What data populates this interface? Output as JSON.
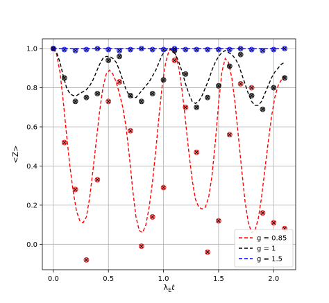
{
  "chart_data": {
    "type": "line",
    "xlabel": "λ_E t",
    "ylabel": "<Z>",
    "xlim": [
      -0.1,
      2.2
    ],
    "ylim": [
      -0.13,
      1.05
    ],
    "xticks": [
      "0.0",
      "0.5",
      "1.0",
      "1.5",
      "2.0"
    ],
    "xtick_values": [
      0.0,
      0.5,
      1.0,
      1.5,
      2.0
    ],
    "yticks": [
      "0.0",
      "0.2",
      "0.4",
      "0.6",
      "0.8",
      "1.0"
    ],
    "ytick_values": [
      0.0,
      0.2,
      0.4,
      0.6,
      0.8,
      1.0
    ],
    "grid": true,
    "legend_position": "lower-right",
    "series": [
      {
        "name": "g = 0.85",
        "color": "#ff0000",
        "line": {
          "x": [
            0.0,
            0.03,
            0.06,
            0.09,
            0.12,
            0.15,
            0.18,
            0.21,
            0.24,
            0.27,
            0.3,
            0.33,
            0.36,
            0.39,
            0.42,
            0.45,
            0.48,
            0.51,
            0.54,
            0.57,
            0.6,
            0.63,
            0.66,
            0.69,
            0.72,
            0.75,
            0.78,
            0.81,
            0.84,
            0.87,
            0.9,
            0.93,
            0.96,
            0.99,
            1.02,
            1.05,
            1.08,
            1.11,
            1.14,
            1.17,
            1.2,
            1.23,
            1.26,
            1.29,
            1.32,
            1.35,
            1.38,
            1.41,
            1.44,
            1.47,
            1.5,
            1.53,
            1.56,
            1.59,
            1.62,
            1.65,
            1.68,
            1.71,
            1.74,
            1.77,
            1.8,
            1.83,
            1.86,
            1.89,
            1.92,
            1.95,
            1.98,
            2.01,
            2.04,
            2.07,
            2.1
          ],
          "y": [
            1.0,
            0.97,
            0.88,
            0.73,
            0.56,
            0.4,
            0.27,
            0.17,
            0.12,
            0.11,
            0.14,
            0.24,
            0.38,
            0.53,
            0.68,
            0.8,
            0.87,
            0.89,
            0.87,
            0.83,
            0.77,
            0.7,
            0.6,
            0.45,
            0.28,
            0.14,
            0.07,
            0.06,
            0.1,
            0.19,
            0.32,
            0.48,
            0.66,
            0.82,
            0.93,
            0.99,
            1.0,
            0.97,
            0.9,
            0.78,
            0.63,
            0.47,
            0.33,
            0.23,
            0.19,
            0.18,
            0.19,
            0.24,
            0.35,
            0.52,
            0.72,
            0.88,
            0.95,
            0.93,
            0.85,
            0.72,
            0.55,
            0.38,
            0.22,
            0.11,
            0.06,
            0.07,
            0.13,
            0.24,
            0.38,
            0.52,
            0.65,
            0.75,
            0.81,
            0.84,
            0.86
          ]
        },
        "points": {
          "x": [
            0.0,
            0.1,
            0.2,
            0.3,
            0.4,
            0.5,
            0.6,
            0.7,
            0.8,
            0.9,
            1.0,
            1.1,
            1.2,
            1.3,
            1.4,
            1.5,
            1.6,
            1.7,
            1.8,
            1.9,
            2.0,
            2.1
          ],
          "y": [
            1.0,
            0.52,
            0.28,
            -0.08,
            0.33,
            0.73,
            0.83,
            0.58,
            -0.01,
            0.14,
            0.29,
            0.94,
            0.7,
            0.47,
            -0.04,
            0.12,
            0.56,
            0.82,
            0.8,
            0.16,
            0.11,
            0.08
          ]
        }
      },
      {
        "name": "g = 1",
        "color": "#000000",
        "line": {
          "x": [
            0.0,
            0.03,
            0.06,
            0.09,
            0.12,
            0.15,
            0.18,
            0.21,
            0.24,
            0.27,
            0.3,
            0.33,
            0.36,
            0.39,
            0.42,
            0.45,
            0.48,
            0.51,
            0.54,
            0.57,
            0.6,
            0.63,
            0.66,
            0.69,
            0.72,
            0.75,
            0.78,
            0.81,
            0.84,
            0.87,
            0.9,
            0.93,
            0.96,
            0.99,
            1.02,
            1.05,
            1.08,
            1.11,
            1.14,
            1.17,
            1.2,
            1.23,
            1.26,
            1.29,
            1.32,
            1.35,
            1.38,
            1.41,
            1.44,
            1.47,
            1.5,
            1.53,
            1.56,
            1.59,
            1.62,
            1.65,
            1.68,
            1.71,
            1.74,
            1.77,
            1.8,
            1.83,
            1.86,
            1.89,
            1.92,
            1.95,
            1.98,
            2.01,
            2.04,
            2.07,
            2.1
          ],
          "y": [
            1.0,
            0.98,
            0.93,
            0.86,
            0.8,
            0.77,
            0.76,
            0.76,
            0.77,
            0.78,
            0.79,
            0.81,
            0.84,
            0.88,
            0.92,
            0.95,
            0.96,
            0.96,
            0.95,
            0.93,
            0.89,
            0.84,
            0.79,
            0.76,
            0.75,
            0.75,
            0.77,
            0.79,
            0.81,
            0.83,
            0.86,
            0.89,
            0.93,
            0.97,
            0.99,
            1.0,
            0.99,
            0.97,
            0.93,
            0.88,
            0.82,
            0.77,
            0.73,
            0.72,
            0.73,
            0.76,
            0.8,
            0.84,
            0.89,
            0.93,
            0.96,
            0.98,
            0.99,
            0.98,
            0.97,
            0.95,
            0.92,
            0.87,
            0.82,
            0.77,
            0.73,
            0.71,
            0.71,
            0.73,
            0.77,
            0.81,
            0.85,
            0.88,
            0.9,
            0.92,
            0.93
          ]
        },
        "points": {
          "x": [
            0.0,
            0.1,
            0.2,
            0.3,
            0.4,
            0.5,
            0.6,
            0.7,
            0.8,
            0.9,
            1.0,
            1.1,
            1.2,
            1.3,
            1.4,
            1.5,
            1.6,
            1.7,
            1.8,
            1.9,
            2.0,
            2.1
          ],
          "y": [
            1.0,
            0.85,
            0.73,
            0.75,
            0.77,
            0.94,
            0.96,
            0.76,
            0.73,
            0.77,
            0.84,
            0.99,
            0.87,
            0.7,
            0.75,
            0.81,
            0.91,
            0.97,
            0.76,
            0.69,
            0.8,
            0.85
          ]
        }
      },
      {
        "name": "g = 1.5",
        "color": "#0000ff",
        "line": {
          "x": [
            0.0,
            0.1,
            0.2,
            0.3,
            0.4,
            0.5,
            0.6,
            0.7,
            0.8,
            0.9,
            1.0,
            1.1,
            1.2,
            1.3,
            1.4,
            1.5,
            1.6,
            1.7,
            1.8,
            1.9,
            2.0,
            2.1
          ],
          "y": [
            1.0,
            1.0,
            1.0,
            1.0,
            1.0,
            1.0,
            1.0,
            1.0,
            1.0,
            1.0,
            1.0,
            1.0,
            1.0,
            1.0,
            1.0,
            1.0,
            1.0,
            1.0,
            1.0,
            1.0,
            1.0,
            1.0
          ]
        },
        "points": {
          "x": [
            0.0,
            0.1,
            0.2,
            0.3,
            0.4,
            0.5,
            0.6,
            0.7,
            0.8,
            0.9,
            1.0,
            1.1,
            1.2,
            1.3,
            1.4,
            1.5,
            1.6,
            1.7,
            1.8,
            1.9,
            2.0,
            2.1
          ],
          "y": [
            1.0,
            0.995,
            0.99,
            0.995,
            1.0,
            0.995,
            0.99,
            0.995,
            1.0,
            0.995,
            0.995,
            1.0,
            0.995,
            0.995,
            0.995,
            0.995,
            0.995,
            1.0,
            0.995,
            0.99,
            0.995,
            1.0
          ]
        }
      }
    ]
  }
}
